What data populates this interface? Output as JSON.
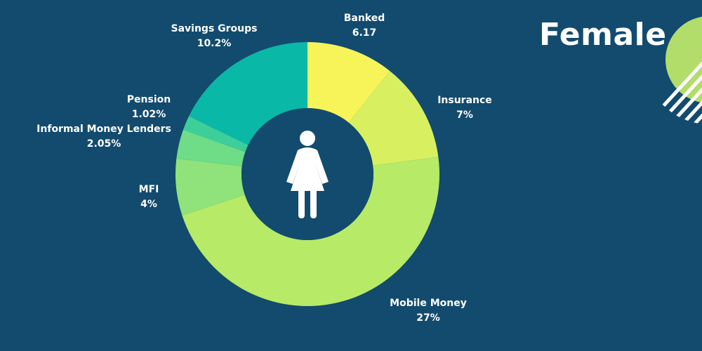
{
  "title": "Female",
  "icon": "woman-icon",
  "colors": {
    "background": "#124b6e",
    "banked": "#f7f45a",
    "insurance": "#d8f060",
    "mobile_money": "#b7ea67",
    "mfi": "#8fe37a",
    "informal": "#6fdc88",
    "pension": "#3ccf99",
    "savings": "#0ab8a8",
    "decoration": "#b3dd6a"
  },
  "chart_data": {
    "type": "pie",
    "variant": "donut",
    "categories": [
      "Banked",
      "Insurance",
      "Mobile Money",
      "MFI",
      "Informal Money Lenders",
      "Pension",
      "Savings Groups"
    ],
    "values": [
      6.17,
      7,
      27,
      4,
      2.05,
      1.02,
      10.2
    ],
    "value_labels": [
      "6.17",
      "7%",
      "27%",
      "4%",
      "2.05%",
      "1.02%",
      "10.2%"
    ]
  }
}
